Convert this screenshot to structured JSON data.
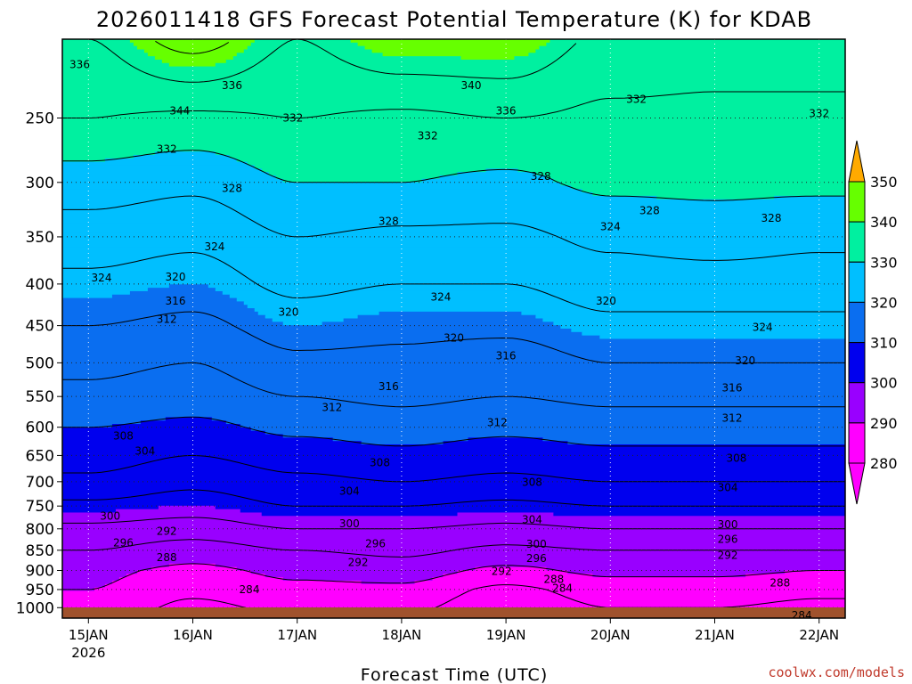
{
  "title": "2026011418 GFS Forecast Potential Temperature (K) for KDAB",
  "xlabel": "Forecast Time (UTC)",
  "credit": "coolwx.com/models",
  "colors": {
    "280": "#ff00ff",
    "290": "#9900ff",
    "300": "#0000ee",
    "310": "#0a6ef0",
    "320": "#00bfff",
    "330": "#00f0a0",
    "340": "#66ff00",
    "350": "#ffff00",
    "above": "#ffaa00",
    "ground": "#a0522d"
  },
  "chart_data": {
    "type": "heatmap",
    "subtype": "time-pressure cross section, filled contours",
    "title": "2026011418 GFS Forecast Potential Temperature (K) for KDAB",
    "xlabel": "Forecast Time (UTC)",
    "ylabel": "",
    "y_scale": "log",
    "y_reversed": true,
    "ylim": [
      1030,
      200
    ],
    "y_ticks": [
      250,
      300,
      350,
      400,
      450,
      500,
      550,
      600,
      650,
      700,
      750,
      800,
      850,
      900,
      950,
      1000
    ],
    "x_start": "2026-01-14T18Z",
    "x_end": "2026-01-22T06Z",
    "x_ticks": [
      {
        "label": "15JAN",
        "sublabel": "2026",
        "time": "2026-01-15T00Z"
      },
      {
        "label": "16JAN",
        "sublabel": "",
        "time": "2026-01-16T00Z"
      },
      {
        "label": "17JAN",
        "sublabel": "",
        "time": "2026-01-17T00Z"
      },
      {
        "label": "18JAN",
        "sublabel": "",
        "time": "2026-01-18T00Z"
      },
      {
        "label": "19JAN",
        "sublabel": "",
        "time": "2026-01-19T00Z"
      },
      {
        "label": "20JAN",
        "sublabel": "",
        "time": "2026-01-20T00Z"
      },
      {
        "label": "21JAN",
        "sublabel": "",
        "time": "2026-01-21T00Z"
      },
      {
        "label": "22JAN",
        "sublabel": "",
        "time": "2026-01-22T00Z"
      }
    ],
    "grid": "dotted",
    "colorbar": {
      "levels": [
        280,
        290,
        300,
        310,
        320,
        330,
        340,
        350
      ],
      "units": "K",
      "extend": "both"
    },
    "series_pressure_profile": {
      "pressures": [
        1000,
        950,
        900,
        850,
        800,
        750,
        700,
        650,
        600,
        550,
        500,
        450,
        400,
        350,
        300,
        250,
        200
      ],
      "theta_at_15JAN": [
        289,
        290,
        291,
        294,
        297,
        301,
        305,
        308,
        310,
        313,
        315,
        318,
        321,
        324,
        328,
        334,
        338
      ],
      "theta_at_16JAN": [
        285,
        287,
        289,
        292,
        296,
        300,
        303,
        306,
        309,
        312,
        314,
        317,
        320,
        323,
        327,
        333,
        344
      ],
      "theta_at_17JAN": [
        287,
        289,
        291,
        294,
        298,
        302,
        305,
        308,
        311,
        314,
        317,
        320,
        323,
        326,
        330,
        334,
        338
      ],
      "theta_at_18JAN": [
        287,
        289,
        292,
        295,
        298,
        302,
        306,
        309,
        312,
        315,
        317,
        319,
        322,
        325,
        330,
        333,
        342
      ],
      "theta_at_19JAN": [
        283,
        285,
        289,
        293,
        297,
        301,
        305,
        308,
        311,
        314,
        316,
        319,
        322,
        325,
        329,
        334,
        342
      ],
      "theta_at_20JAN": [
        286,
        288,
        291,
        294,
        298,
        302,
        306,
        309,
        312,
        315,
        318,
        321,
        324,
        327,
        331,
        333,
        337
      ],
      "theta_at_21JAN": [
        286,
        288,
        291,
        294,
        298,
        302,
        306,
        309,
        312,
        315,
        318,
        321,
        324,
        328,
        331,
        333,
        336
      ],
      "theta_at_22JAN": [
        285,
        287,
        290,
        294,
        298,
        302,
        306,
        309,
        312,
        315,
        318,
        321,
        324,
        327,
        331,
        333,
        336
      ]
    },
    "contour_labels": [
      {
        "v": "336",
        "t": "2026-01-14T22Z",
        "p": 215
      },
      {
        "v": "344",
        "t": "2026-01-15T21Z",
        "p": 245
      },
      {
        "v": "336",
        "t": "2026-01-16T09Z",
        "p": 228
      },
      {
        "v": "340",
        "t": "2026-01-18T16Z",
        "p": 228
      },
      {
        "v": "336",
        "t": "2026-01-19T00Z",
        "p": 245
      },
      {
        "v": "332",
        "t": "2026-01-20T06Z",
        "p": 237
      },
      {
        "v": "332",
        "t": "2026-01-22T00Z",
        "p": 247
      },
      {
        "v": "332",
        "t": "2026-01-16T23Z",
        "p": 250
      },
      {
        "v": "332",
        "t": "2026-01-18T06Z",
        "p": 263
      },
      {
        "v": "332",
        "t": "2026-01-15T18Z",
        "p": 273
      },
      {
        "v": "328",
        "t": "2026-01-16T09Z",
        "p": 305
      },
      {
        "v": "328",
        "t": "2026-01-19T08Z",
        "p": 295
      },
      {
        "v": "328",
        "t": "2026-01-17T21Z",
        "p": 335
      },
      {
        "v": "328",
        "t": "2026-01-20T09Z",
        "p": 325
      },
      {
        "v": "328",
        "t": "2026-01-21T13Z",
        "p": 332
      },
      {
        "v": "324",
        "t": "2026-01-20T00Z",
        "p": 340
      },
      {
        "v": "324",
        "t": "2026-01-16T05Z",
        "p": 360
      },
      {
        "v": "324",
        "t": "2026-01-15T03Z",
        "p": 393
      },
      {
        "v": "320",
        "t": "2026-01-15T20Z",
        "p": 392
      },
      {
        "v": "316",
        "t": "2026-01-15T20Z",
        "p": 420
      },
      {
        "v": "312",
        "t": "2026-01-15T18Z",
        "p": 442
      },
      {
        "v": "324",
        "t": "2026-01-18T09Z",
        "p": 415
      },
      {
        "v": "320",
        "t": "2026-01-16T22Z",
        "p": 433
      },
      {
        "v": "320",
        "t": "2026-01-19T23Z",
        "p": 420
      },
      {
        "v": "320",
        "t": "2026-01-18T12Z",
        "p": 466
      },
      {
        "v": "324",
        "t": "2026-01-21T11Z",
        "p": 452
      },
      {
        "v": "316",
        "t": "2026-01-19T00Z",
        "p": 490
      },
      {
        "v": "320",
        "t": "2026-01-21T07Z",
        "p": 497
      },
      {
        "v": "316",
        "t": "2026-01-17T21Z",
        "p": 535
      },
      {
        "v": "316",
        "t": "2026-01-21T04Z",
        "p": 537
      },
      {
        "v": "312",
        "t": "2026-01-17T08Z",
        "p": 567
      },
      {
        "v": "312",
        "t": "2026-01-18T22Z",
        "p": 592
      },
      {
        "v": "312",
        "t": "2026-01-21T04Z",
        "p": 585
      },
      {
        "v": "308",
        "t": "2026-01-15T08Z",
        "p": 615
      },
      {
        "v": "304",
        "t": "2026-01-15T13Z",
        "p": 642
      },
      {
        "v": "308",
        "t": "2026-01-17T19Z",
        "p": 663
      },
      {
        "v": "308",
        "t": "2026-01-21T05Z",
        "p": 655
      },
      {
        "v": "304",
        "t": "2026-01-17T12Z",
        "p": 719
      },
      {
        "v": "308",
        "t": "2026-01-19T06Z",
        "p": 701
      },
      {
        "v": "304",
        "t": "2026-01-21T03Z",
        "p": 712
      },
      {
        "v": "300",
        "t": "2026-01-15T05Z",
        "p": 772
      },
      {
        "v": "292",
        "t": "2026-01-15T18Z",
        "p": 805
      },
      {
        "v": "296",
        "t": "2026-01-15T08Z",
        "p": 832
      },
      {
        "v": "288",
        "t": "2026-01-15T18Z",
        "p": 868
      },
      {
        "v": "304",
        "t": "2026-01-19T06Z",
        "p": 780
      },
      {
        "v": "300",
        "t": "2026-01-17T12Z",
        "p": 788
      },
      {
        "v": "300",
        "t": "2026-01-19T07Z",
        "p": 836
      },
      {
        "v": "296",
        "t": "2026-01-17T18Z",
        "p": 834
      },
      {
        "v": "296",
        "t": "2026-01-19T07Z",
        "p": 870
      },
      {
        "v": "292",
        "t": "2026-01-17T14Z",
        "p": 880
      },
      {
        "v": "292",
        "t": "2026-01-18T23Z",
        "p": 902
      },
      {
        "v": "288",
        "t": "2026-01-19T11Z",
        "p": 923
      },
      {
        "v": "284",
        "t": "2026-01-16T13Z",
        "p": 950
      },
      {
        "v": "284",
        "t": "2026-01-19T13Z",
        "p": 947
      },
      {
        "v": "300",
        "t": "2026-01-21T03Z",
        "p": 790
      },
      {
        "v": "296",
        "t": "2026-01-21T03Z",
        "p": 824
      },
      {
        "v": "292",
        "t": "2026-01-21T03Z",
        "p": 862
      },
      {
        "v": "288",
        "t": "2026-01-21T15Z",
        "p": 932
      },
      {
        "v": "284",
        "t": "2026-01-21T20Z",
        "p": 1022
      }
    ]
  }
}
